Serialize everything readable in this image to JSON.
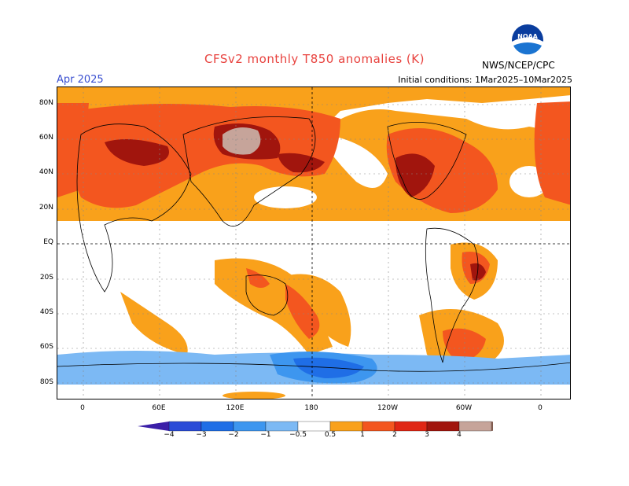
{
  "title": "CFSv2 monthly T850 anomalies (K)",
  "period": "Apr 2025",
  "initial_conditions": "Initial conditions: 1Mar2025–10Mar2025",
  "agency": "NWS/NCEP/CPC",
  "logo_text": "NOAA",
  "lat_ticks": [
    "80N",
    "60N",
    "40N",
    "20N",
    "EQ",
    "20S",
    "40S",
    "60S",
    "80S"
  ],
  "lon_ticks": [
    "0",
    "60E",
    "120E",
    "180",
    "120W",
    "60W",
    "0"
  ],
  "colorbar": {
    "labels": [
      "−4",
      "−3",
      "−2",
      "−1",
      "−0.5",
      "0.5",
      "1",
      "2",
      "3",
      "4"
    ],
    "colors": [
      "#3b1fa8",
      "#2a4bd7",
      "#1f6ee6",
      "#3d96ef",
      "#7cb9f4",
      "#ffffff",
      "#f9a11b",
      "#f3561f",
      "#e02614",
      "#a1150d",
      "#c6a49a",
      "#7f5a4e"
    ]
  },
  "palette": {
    "warm1": "#f9a11b",
    "warm2": "#f3561f",
    "warm3": "#e02614",
    "warm4": "#a1150d",
    "warm5": "#c6a49a",
    "cool1": "#7cb9f4",
    "cool2": "#3d96ef",
    "cool3": "#1f6ee6"
  }
}
